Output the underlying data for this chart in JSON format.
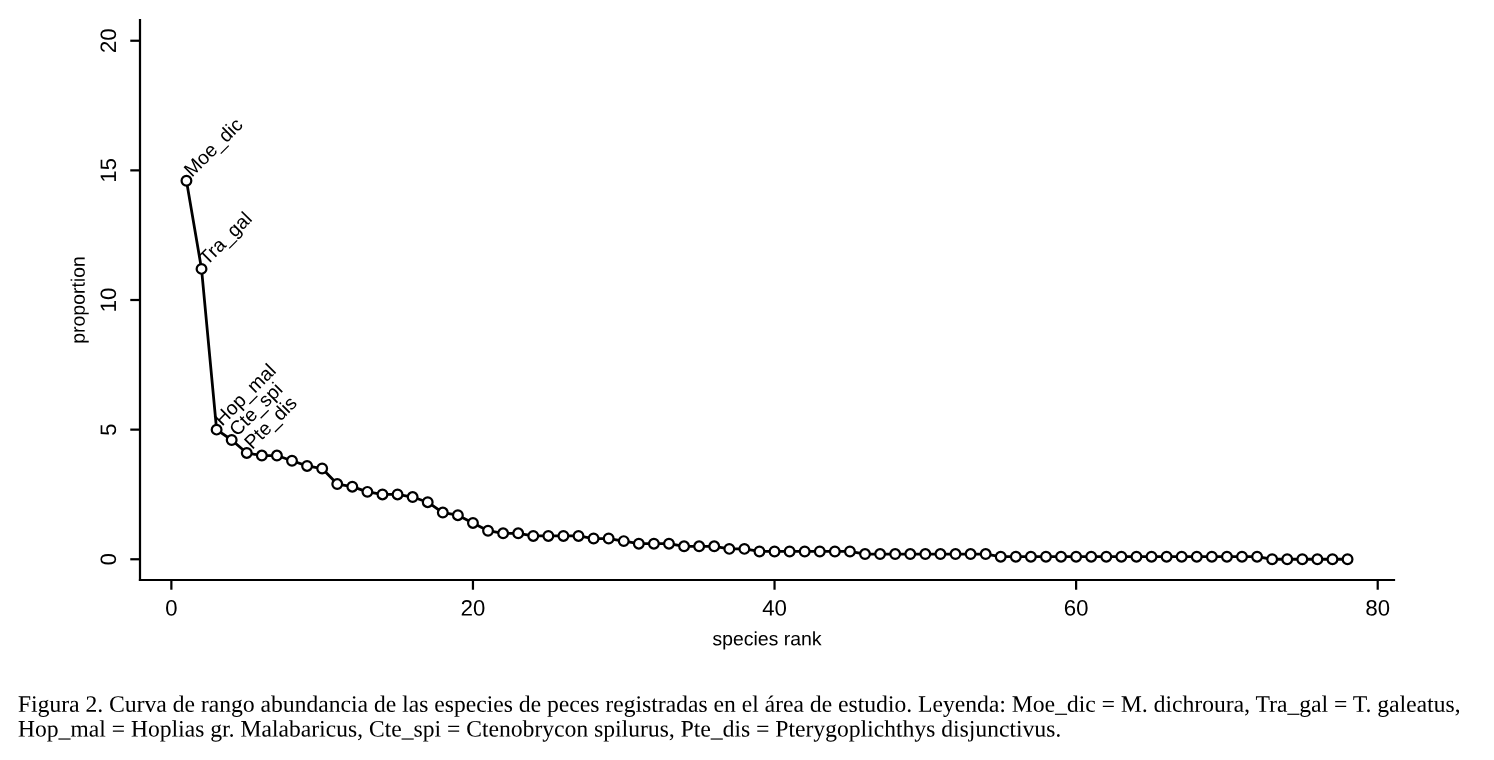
{
  "chart_data": {
    "type": "line",
    "xlabel": "species rank",
    "ylabel": "proportion",
    "x": [
      1,
      2,
      3,
      4,
      5,
      6,
      7,
      8,
      9,
      10,
      11,
      12,
      13,
      14,
      15,
      16,
      17,
      18,
      19,
      20,
      21,
      22,
      23,
      24,
      25,
      26,
      27,
      28,
      29,
      30,
      31,
      32,
      33,
      34,
      35,
      36,
      37,
      38,
      39,
      40,
      41,
      42,
      43,
      44,
      45,
      46,
      47,
      48,
      49,
      50,
      51,
      52,
      53,
      54,
      55,
      56,
      57,
      58,
      59,
      60,
      61,
      62,
      63,
      64,
      65,
      66,
      67,
      68,
      69,
      70,
      71,
      72,
      73,
      74,
      75,
      76,
      77,
      78
    ],
    "series": [
      {
        "color": "#000000",
        "values": [
          14.6,
          11.2,
          5.0,
          4.6,
          4.1,
          4.0,
          4.0,
          3.8,
          3.6,
          3.5,
          2.9,
          2.8,
          2.6,
          2.5,
          2.5,
          2.4,
          2.2,
          1.8,
          1.7,
          1.4,
          1.1,
          1.0,
          1.0,
          0.9,
          0.9,
          0.9,
          0.9,
          0.8,
          0.8,
          0.7,
          0.6,
          0.6,
          0.6,
          0.5,
          0.5,
          0.5,
          0.4,
          0.4,
          0.3,
          0.3,
          0.3,
          0.3,
          0.3,
          0.3,
          0.3,
          0.2,
          0.2,
          0.2,
          0.2,
          0.2,
          0.2,
          0.2,
          0.2,
          0.2,
          0.1,
          0.1,
          0.1,
          0.1,
          0.1,
          0.1,
          0.1,
          0.1,
          0.1,
          0.1,
          0.1,
          0.1,
          0.1,
          0.1,
          0.1,
          0.1,
          0.1,
          0.1,
          0.0,
          0.0,
          0.0,
          0.0,
          0.0,
          0.0
        ]
      }
    ],
    "marker": "circle",
    "line_style": "solid",
    "grid": false,
    "xlim": [
      -2.08,
      81.08
    ],
    "ylim": [
      -0.8,
      20.8
    ],
    "xticks": [
      0,
      20,
      40,
      60,
      80
    ],
    "yticks": [
      0,
      5,
      10,
      15,
      20
    ],
    "annotations": [
      {
        "text": "Moe_dic",
        "x": 1,
        "y": 14.6
      },
      {
        "text": "Tra_gal",
        "x": 2,
        "y": 11.2
      },
      {
        "text": "Hop_mal",
        "x": 3,
        "y": 5.0
      },
      {
        "text": "Cte_spi",
        "x": 4,
        "y": 4.6
      },
      {
        "text": "Pte_dis",
        "x": 5,
        "y": 4.1
      },
      "Figura 2. Curva de rango abundancia de las especies de peces registradas en el área de estudio. Leyenda: Moe_dic = M. dichroura, Tra_gal = T. galeatus, Hop_mal = Hoplias gr. Malabaricus, Cte_spi = Ctenobrycon spilurus, Pte_dis = Pterygoplichthys disjunctivus."
    ]
  }
}
